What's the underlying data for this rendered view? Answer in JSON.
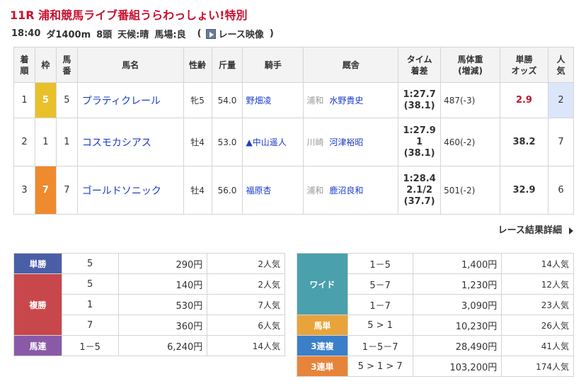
{
  "race": {
    "title": "11R 浦和競馬ライブ番組うらわっしょい!特別",
    "time": "18:40",
    "course": "ダ1400m",
    "heads": "8頭",
    "weather": "天候:晴",
    "track": "馬場:良",
    "paren_open": "(",
    "video_label": "レース映像",
    "paren_close": ")"
  },
  "results": {
    "headers": {
      "rank": [
        "着",
        "順"
      ],
      "waku": "枠",
      "number": [
        "馬",
        "番"
      ],
      "name": "馬名",
      "sexage": "性齢",
      "weight": "斤量",
      "jockey": "騎手",
      "stable": "厩舎",
      "time": [
        "タイム",
        "着差"
      ],
      "bodyweight": [
        "馬体重",
        "(増減)"
      ],
      "odds": [
        "単勝",
        "オッズ"
      ],
      "popularity": [
        "人",
        "気"
      ]
    },
    "rows": [
      {
        "rank": "1",
        "waku": "5",
        "number": "5",
        "name": "プラティクレール",
        "sexage": "牝5",
        "weight": "54.0",
        "jockey": "野畑凌",
        "stable_loc": "浦和",
        "trainer": "水野貴史",
        "time": "1:27.7",
        "margin": "",
        "last": "(38.1)",
        "bodyweight": "487(-3)",
        "odds": "2.9",
        "popularity": "2"
      },
      {
        "rank": "2",
        "waku": "1",
        "number": "1",
        "name": "コスモカシアス",
        "sexage": "牡4",
        "weight": "53.0",
        "jockey": "▲中山遥人",
        "stable_loc": "川崎",
        "trainer": "河津裕昭",
        "time": "1:27.9",
        "margin": "1",
        "last": "(38.1)",
        "bodyweight": "460(-2)",
        "odds": "38.2",
        "popularity": "7"
      },
      {
        "rank": "3",
        "waku": "7",
        "number": "7",
        "name": "ゴールドソニック",
        "sexage": "牡4",
        "weight": "56.0",
        "jockey": "福原杏",
        "stable_loc": "浦和",
        "trainer": "鹿沼良和",
        "time": "1:28.4",
        "margin": "2.1/2",
        "last": "(37.7)",
        "bodyweight": "501(-2)",
        "odds": "32.9",
        "popularity": "6"
      }
    ]
  },
  "detail_link": "レース結果詳細",
  "payouts_left": {
    "tansho": {
      "label": "単勝",
      "comb": "5",
      "amount": "290円",
      "pop": "2人気"
    },
    "fukusho": {
      "label": "複勝",
      "rows": [
        {
          "comb": "5",
          "amount": "140円",
          "pop": "2人気"
        },
        {
          "comb": "1",
          "amount": "530円",
          "pop": "7人気"
        },
        {
          "comb": "7",
          "amount": "360円",
          "pop": "6人気"
        }
      ]
    },
    "umaren": {
      "label": "馬連",
      "comb": "1－5",
      "amount": "6,240円",
      "pop": "14人気"
    }
  },
  "payouts_right": {
    "wide": {
      "label": "ワイド",
      "rows": [
        {
          "comb": "1－5",
          "amount": "1,400円",
          "pop": "14人気"
        },
        {
          "comb": "5－7",
          "amount": "1,230円",
          "pop": "12人気"
        },
        {
          "comb": "1－7",
          "amount": "3,090円",
          "pop": "23人気"
        }
      ]
    },
    "umatan": {
      "label": "馬単",
      "comb": "5 > 1",
      "amount": "10,230円",
      "pop": "26人気"
    },
    "sanrenpuku": {
      "label": "3連複",
      "comb": "1－5－7",
      "amount": "28,490円",
      "pop": "41人気"
    },
    "sanrentan": {
      "label": "3連単",
      "comb": "5 > 1 > 7",
      "amount": "103,200円",
      "pop": "174人気"
    }
  }
}
